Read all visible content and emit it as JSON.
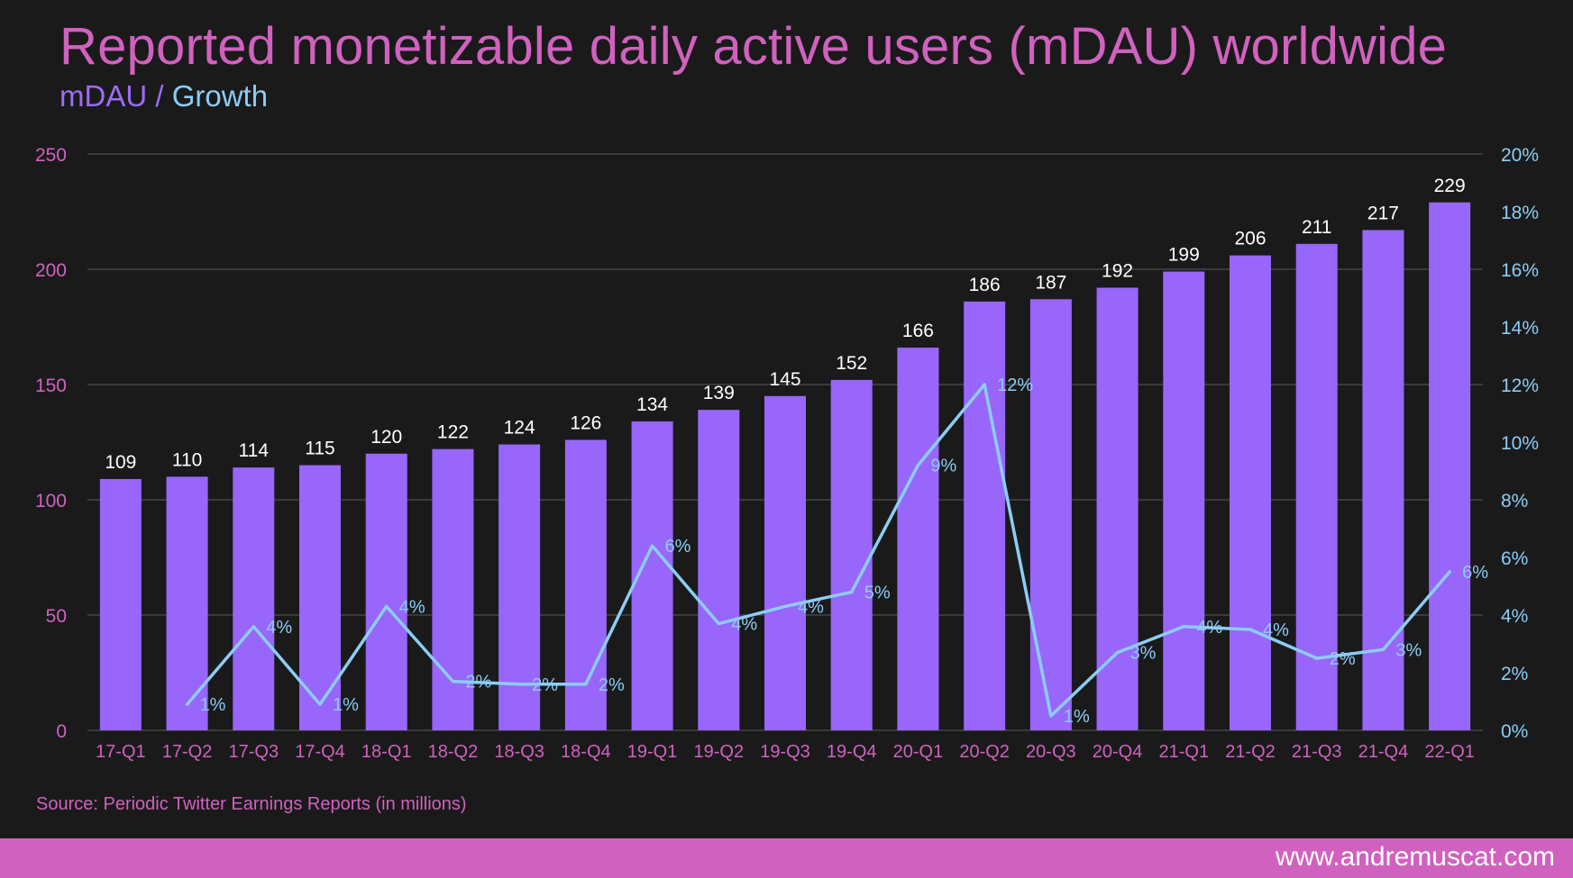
{
  "header": {
    "title": "Reported monetizable daily active users (mDAU) worldwide",
    "subtitle_mdau": "mDAU",
    "subtitle_sep": " / ",
    "subtitle_growth": "Growth"
  },
  "chart_data": {
    "type": "bar",
    "title": "Reported monetizable daily active users (mDAU) worldwide",
    "categories": [
      "17-Q1",
      "17-Q2",
      "17-Q3",
      "17-Q4",
      "18-Q1",
      "18-Q2",
      "18-Q3",
      "18-Q4",
      "19-Q1",
      "19-Q2",
      "19-Q3",
      "19-Q4",
      "20-Q1",
      "20-Q2",
      "20-Q3",
      "20-Q4",
      "21-Q1",
      "21-Q2",
      "21-Q3",
      "21-Q4",
      "22-Q1"
    ],
    "series": [
      {
        "name": "mDAU",
        "type": "bar",
        "axis": "left",
        "values": [
          109,
          110,
          114,
          115,
          120,
          122,
          124,
          126,
          134,
          139,
          145,
          152,
          166,
          186,
          187,
          192,
          199,
          206,
          211,
          217,
          229
        ],
        "labels": [
          "109",
          "110",
          "114",
          "115",
          "120",
          "122",
          "124",
          "126",
          "134",
          "139",
          "145",
          "152",
          "166",
          "186",
          "187",
          "192",
          "199",
          "206",
          "211",
          "217",
          "229"
        ]
      },
      {
        "name": "Growth",
        "type": "line",
        "axis": "right",
        "values": [
          null,
          0.9,
          3.6,
          0.9,
          4.3,
          1.7,
          1.6,
          1.6,
          6.4,
          3.7,
          4.3,
          4.8,
          9.2,
          12.0,
          0.5,
          2.7,
          3.6,
          3.5,
          2.5,
          2.8,
          5.5
        ],
        "labels": [
          null,
          "1%",
          "4%",
          "1%",
          "4%",
          "2%",
          "2%",
          "2%",
          "6%",
          "4%",
          "4%",
          "5%",
          "9%",
          "12%",
          "1%",
          "3%",
          "4%",
          "4%",
          "2%",
          "3%",
          "6%"
        ]
      }
    ],
    "y_left": {
      "range": [
        0,
        250
      ],
      "ticks": [
        "0",
        "50",
        "100",
        "150",
        "200",
        "250"
      ]
    },
    "y_right": {
      "range": [
        0,
        20
      ],
      "ticks": [
        "0%",
        "2%",
        "4%",
        "6%",
        "8%",
        "10%",
        "12%",
        "14%",
        "16%",
        "18%",
        "20%"
      ]
    },
    "grid": true
  },
  "colors": {
    "background": "#1a1a1b",
    "bar": "#9866fb",
    "line": "#8ccdf4",
    "accent": "#d161bf",
    "bar_label": "#ffffff",
    "grid": "#5a5a5a"
  },
  "source": "Source: Periodic Twitter Earnings Reports (in millions)",
  "footer": {
    "website": "www.andremuscat.com"
  }
}
